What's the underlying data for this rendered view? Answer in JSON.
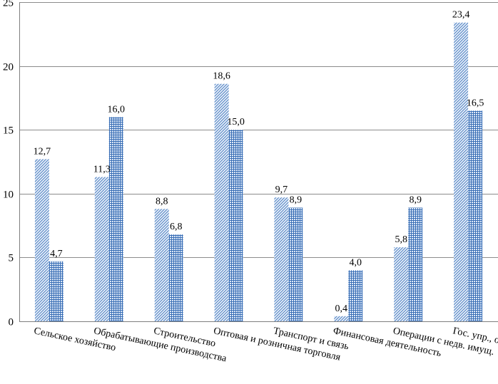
{
  "chart_data": {
    "type": "bar",
    "title": "",
    "xlabel": "",
    "ylabel": "",
    "ylim": [
      0,
      25
    ],
    "yticks": [
      0,
      5,
      10,
      15,
      20,
      25
    ],
    "ytick_labels": [
      "0",
      "5",
      "10",
      "15",
      "20",
      "25"
    ],
    "grid": "horizontal",
    "legend": "none",
    "categories": [
      "Сельское хозяйство",
      "Обрабатывающие производства",
      "Строительство",
      "Оптовая и розничная торговля",
      "Транспорт и связь",
      "Финансовая деятельность",
      "Операции с недв. имущ.",
      "Гос. упр., обр., здрав."
    ],
    "series": [
      {
        "values": [
          12.7,
          11.3,
          8.8,
          18.6,
          9.7,
          0.4,
          5.8,
          23.4
        ],
        "labels": [
          "12,7",
          "11,3",
          "8,8",
          "18,6",
          "9,7",
          "0,4",
          "5,8",
          "23,4"
        ],
        "pattern": "diagonal-hatch",
        "color": "#4a7fc1"
      },
      {
        "values": [
          4.7,
          16.0,
          6.8,
          15.0,
          8.9,
          4.0,
          8.9,
          16.5
        ],
        "labels": [
          "4,7",
          "16,0",
          "6,8",
          "15,0",
          "8,9",
          "4,0",
          "8,9",
          "16,5"
        ],
        "pattern": "grid-hatch",
        "color": "#3a6fb6"
      }
    ]
  }
}
